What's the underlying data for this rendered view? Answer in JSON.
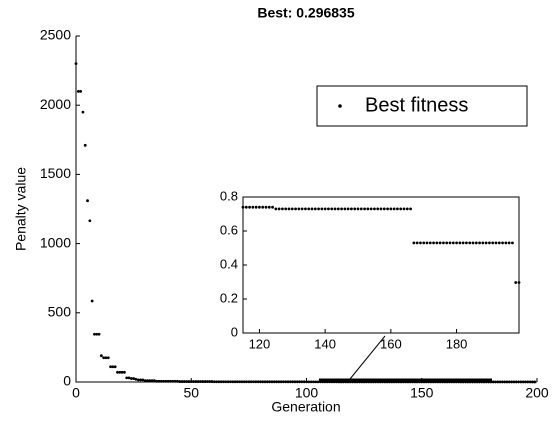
{
  "chart_data": {
    "type": "scatter",
    "title": "Best: 0.296835",
    "xlabel": "Generation",
    "ylabel": "Penalty value",
    "xlim": [
      0,
      200
    ],
    "xticks": [
      0,
      50,
      100,
      150,
      200
    ],
    "ylim": [
      0,
      2500
    ],
    "yticks": [
      0,
      500,
      1000,
      1500,
      2000,
      2500
    ],
    "legend": "upper right",
    "x": [
      0,
      1,
      2,
      3,
      4,
      5,
      6,
      7,
      8,
      9,
      10,
      11,
      12,
      13,
      14,
      15,
      16,
      17,
      18,
      19,
      20,
      21,
      22,
      23,
      24,
      25,
      26,
      27,
      28,
      29,
      30,
      31,
      32,
      33,
      34,
      35,
      36,
      37,
      38,
      39,
      40,
      41,
      42,
      43,
      44,
      45,
      46,
      47,
      48,
      49,
      50,
      51,
      52,
      53,
      54,
      55,
      56,
      57,
      58,
      59,
      60,
      61,
      62,
      63,
      64,
      65,
      66,
      67,
      68,
      69,
      70,
      71,
      72,
      73,
      74,
      75,
      76,
      77,
      78,
      79,
      80,
      81,
      82,
      83,
      84,
      85,
      86,
      87,
      88,
      89,
      90,
      91,
      92,
      93,
      94,
      95,
      96,
      97,
      98,
      99,
      100,
      101,
      102,
      103,
      104,
      105,
      106,
      107,
      108,
      109,
      110,
      111,
      112,
      113,
      114,
      115,
      116,
      117,
      118,
      119,
      120,
      121,
      122,
      123,
      124,
      125,
      126,
      127,
      128,
      129,
      130,
      131,
      132,
      133,
      134,
      135,
      136,
      137,
      138,
      139,
      140,
      141,
      142,
      143,
      144,
      145,
      146,
      147,
      148,
      149,
      150,
      151,
      152,
      153,
      154,
      155,
      156,
      157,
      158,
      159,
      160,
      161,
      162,
      163,
      164,
      165,
      166,
      167,
      168,
      169,
      170,
      171,
      172,
      173,
      174,
      175,
      176,
      177,
      178,
      179,
      180,
      181,
      182,
      183,
      184,
      185,
      186,
      187,
      188,
      189,
      190,
      191,
      192,
      193,
      194,
      195,
      196,
      197,
      198,
      199
    ],
    "series": [
      {
        "name": "Best fitness",
        "color": "#000000",
        "values": [
          2300,
          2100,
          2100,
          1950,
          1710,
          1310,
          1165,
          585,
          345,
          345,
          345,
          190,
          175,
          175,
          175,
          110,
          110,
          110,
          70,
          70,
          70,
          70,
          30,
          30,
          25,
          25,
          20,
          15,
          15,
          15,
          10,
          10,
          10,
          10,
          10,
          5,
          5,
          5,
          5,
          5,
          5,
          5,
          5,
          5,
          5,
          3,
          3,
          3,
          3,
          3,
          3,
          3,
          3,
          3,
          3,
          3,
          3,
          3,
          3,
          3,
          2,
          2,
          2,
          2,
          2,
          2,
          2,
          2,
          2,
          2,
          2,
          2,
          2,
          2,
          2,
          2,
          2,
          2,
          2,
          2,
          1.5,
          1.5,
          1.5,
          1.5,
          1.5,
          1.5,
          1.5,
          1.5,
          1.5,
          1.5,
          1.5,
          1.5,
          1.5,
          1.5,
          1.5,
          1.5,
          1.5,
          1.5,
          1.5,
          1.5,
          1,
          1,
          1,
          1,
          1,
          1,
          1,
          1,
          1,
          1,
          1,
          1,
          1,
          1,
          0.74,
          0.74,
          0.74,
          0.74,
          0.74,
          0.74,
          0.74,
          0.74,
          0.74,
          0.74,
          0.74,
          0.73,
          0.73,
          0.73,
          0.73,
          0.73,
          0.73,
          0.73,
          0.73,
          0.73,
          0.73,
          0.73,
          0.73,
          0.73,
          0.73,
          0.73,
          0.73,
          0.73,
          0.73,
          0.73,
          0.73,
          0.73,
          0.73,
          0.73,
          0.73,
          0.73,
          0.73,
          0.73,
          0.73,
          0.73,
          0.73,
          0.73,
          0.73,
          0.73,
          0.73,
          0.73,
          0.73,
          0.73,
          0.73,
          0.73,
          0.73,
          0.73,
          0.73,
          0.53,
          0.53,
          0.53,
          0.53,
          0.53,
          0.53,
          0.53,
          0.53,
          0.53,
          0.53,
          0.53,
          0.53,
          0.53,
          0.53,
          0.53,
          0.53,
          0.53,
          0.53,
          0.53,
          0.53,
          0.53,
          0.53,
          0.53,
          0.53,
          0.53,
          0.53,
          0.53,
          0.53,
          0.53,
          0.53,
          0.53,
          0.296835,
          0.296835
        ]
      }
    ],
    "inset": {
      "xlim": [
        115,
        199
      ],
      "xticks": [
        120,
        140,
        160,
        180
      ],
      "ylim": [
        0,
        0.8
      ],
      "yticks": [
        0,
        0.2,
        0.4,
        0.6,
        0.8
      ]
    }
  }
}
